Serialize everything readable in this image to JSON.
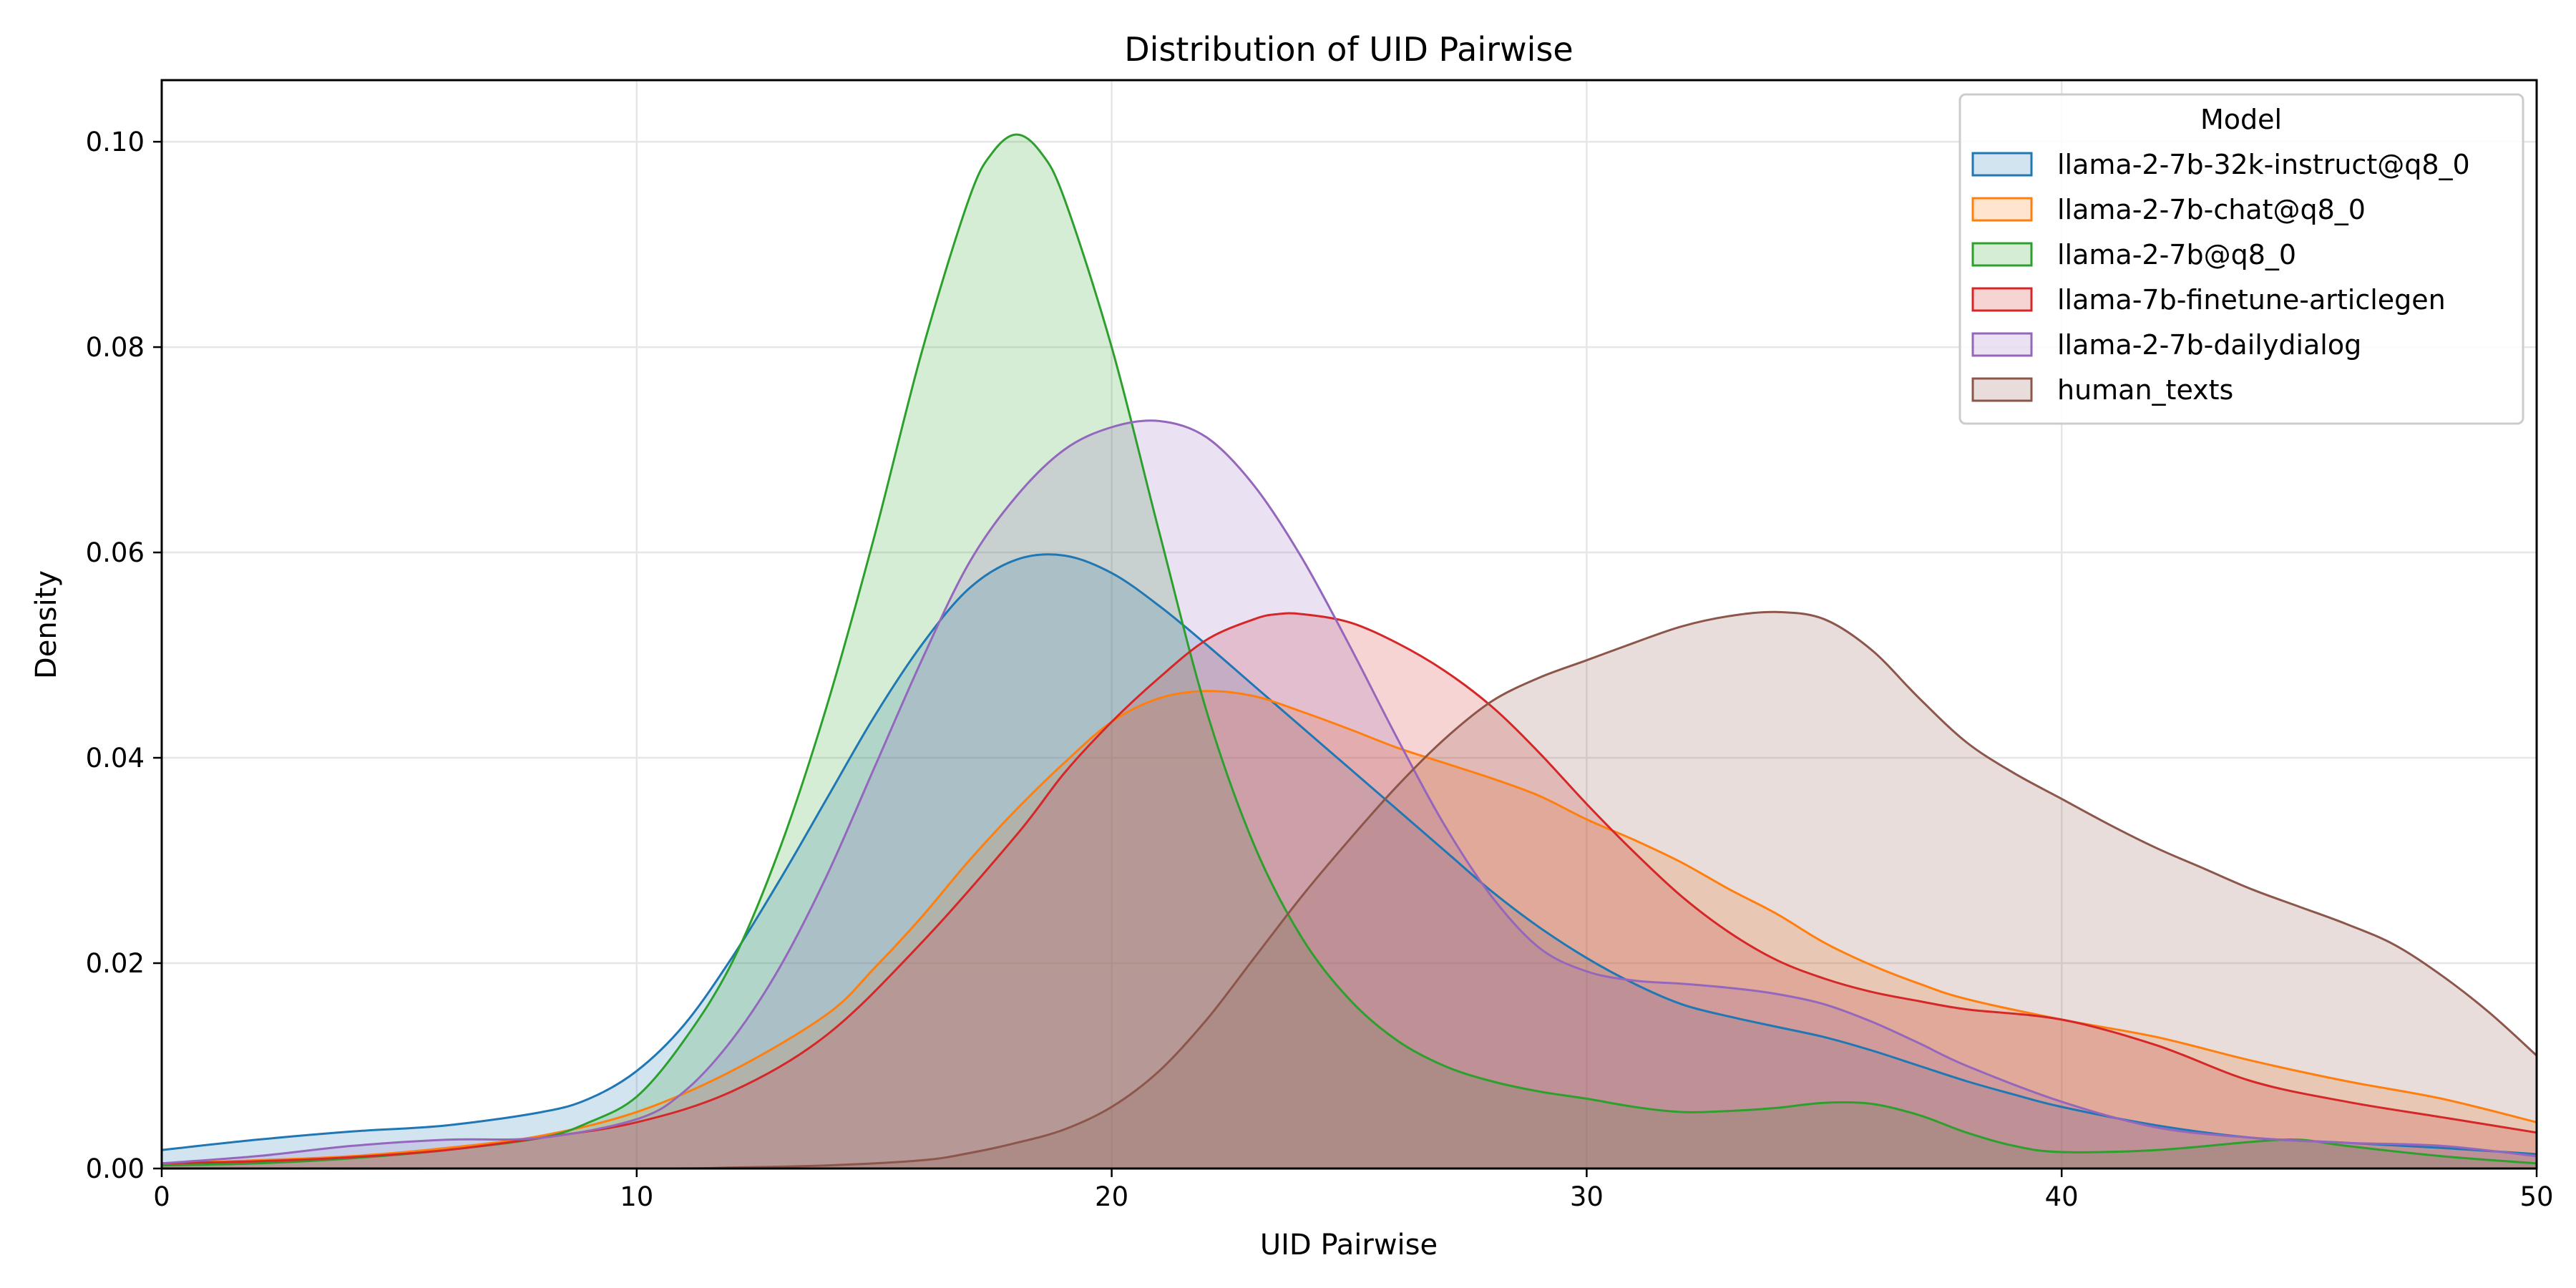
{
  "chart_data": {
    "type": "area",
    "title": "Distribution of UID Pairwise",
    "xlabel": "UID Pairwise",
    "ylabel": "Density",
    "xlim": [
      0,
      50
    ],
    "ylim": [
      0,
      0.106
    ],
    "xticks": [
      0,
      10,
      20,
      30,
      40,
      50
    ],
    "xtick_labels": [
      "0",
      "10",
      "20",
      "30",
      "40",
      "50"
    ],
    "yticks": [
      0,
      0.02,
      0.04,
      0.06,
      0.08,
      0.1
    ],
    "ytick_labels": [
      "0.00",
      "0.02",
      "0.04",
      "0.06",
      "0.08",
      "0.10"
    ],
    "grid": true,
    "legend": {
      "title": "Model",
      "placement": "top-right"
    },
    "series": [
      {
        "name": "llama-2-7b-32k-instruct@q8_0",
        "color": "#1f77b4",
        "points": [
          [
            0,
            0.0018
          ],
          [
            2,
            0.0028
          ],
          [
            4,
            0.0036
          ],
          [
            6,
            0.0042
          ],
          [
            8,
            0.0055
          ],
          [
            9,
            0.0068
          ],
          [
            10,
            0.0095
          ],
          [
            11,
            0.014
          ],
          [
            12,
            0.0205
          ],
          [
            13,
            0.028
          ],
          [
            14,
            0.036
          ],
          [
            15,
            0.044
          ],
          [
            16,
            0.051
          ],
          [
            17,
            0.0565
          ],
          [
            18,
            0.0593
          ],
          [
            19,
            0.0597
          ],
          [
            20,
            0.058
          ],
          [
            21,
            0.0548
          ],
          [
            22,
            0.051
          ],
          [
            23,
            0.047
          ],
          [
            24,
            0.043
          ],
          [
            25,
            0.039
          ],
          [
            26,
            0.035
          ],
          [
            27,
            0.031
          ],
          [
            28,
            0.027
          ],
          [
            29,
            0.0235
          ],
          [
            30,
            0.0205
          ],
          [
            31,
            0.018
          ],
          [
            32,
            0.016
          ],
          [
            33,
            0.0148
          ],
          [
            34,
            0.0138
          ],
          [
            35,
            0.0128
          ],
          [
            36,
            0.0115
          ],
          [
            37,
            0.01
          ],
          [
            38,
            0.0085
          ],
          [
            39,
            0.0072
          ],
          [
            40,
            0.006
          ],
          [
            42,
            0.0042
          ],
          [
            44,
            0.003
          ],
          [
            46,
            0.0025
          ],
          [
            48,
            0.002
          ],
          [
            50,
            0.0014
          ]
        ]
      },
      {
        "name": "llama-2-7b-chat@q8_0",
        "color": "#ff7f0e",
        "points": [
          [
            0,
            0.0005
          ],
          [
            2,
            0.0008
          ],
          [
            4,
            0.0012
          ],
          [
            6,
            0.002
          ],
          [
            8,
            0.0032
          ],
          [
            10,
            0.0055
          ],
          [
            12,
            0.0095
          ],
          [
            14,
            0.015
          ],
          [
            15,
            0.0195
          ],
          [
            16,
            0.0245
          ],
          [
            17,
            0.03
          ],
          [
            18,
            0.035
          ],
          [
            19,
            0.0395
          ],
          [
            20,
            0.0435
          ],
          [
            21,
            0.0458
          ],
          [
            22,
            0.0465
          ],
          [
            23,
            0.046
          ],
          [
            24,
            0.0445
          ],
          [
            25,
            0.0428
          ],
          [
            26,
            0.041
          ],
          [
            27,
            0.0395
          ],
          [
            28,
            0.038
          ],
          [
            29,
            0.0363
          ],
          [
            30,
            0.034
          ],
          [
            31,
            0.032
          ],
          [
            32,
            0.0298
          ],
          [
            33,
            0.0272
          ],
          [
            34,
            0.0248
          ],
          [
            35,
            0.022
          ],
          [
            36,
            0.0198
          ],
          [
            37,
            0.018
          ],
          [
            38,
            0.0165
          ],
          [
            40,
            0.0145
          ],
          [
            42,
            0.0128
          ],
          [
            44,
            0.0105
          ],
          [
            46,
            0.0085
          ],
          [
            48,
            0.0068
          ],
          [
            50,
            0.0045
          ]
        ]
      },
      {
        "name": "llama-2-7b@q8_0",
        "color": "#2ca02c",
        "points": [
          [
            0,
            0.0003
          ],
          [
            2,
            0.0005
          ],
          [
            4,
            0.001
          ],
          [
            6,
            0.0018
          ],
          [
            8,
            0.003
          ],
          [
            9,
            0.0045
          ],
          [
            10,
            0.007
          ],
          [
            11,
            0.0125
          ],
          [
            12,
            0.02
          ],
          [
            13,
            0.031
          ],
          [
            14,
            0.045
          ],
          [
            15,
            0.0615
          ],
          [
            16,
            0.0795
          ],
          [
            17,
            0.0945
          ],
          [
            17.5,
            0.099
          ],
          [
            18,
            0.1007
          ],
          [
            18.5,
            0.099
          ],
          [
            19,
            0.0945
          ],
          [
            20,
            0.08
          ],
          [
            21,
            0.062
          ],
          [
            22,
            0.0445
          ],
          [
            23,
            0.0315
          ],
          [
            24,
            0.0225
          ],
          [
            25,
            0.0165
          ],
          [
            26,
            0.0125
          ],
          [
            27,
            0.01
          ],
          [
            28,
            0.0085
          ],
          [
            29,
            0.0075
          ],
          [
            30,
            0.0068
          ],
          [
            31,
            0.006
          ],
          [
            32,
            0.0055
          ],
          [
            33,
            0.0056
          ],
          [
            34,
            0.0059
          ],
          [
            35,
            0.0064
          ],
          [
            36,
            0.0063
          ],
          [
            37,
            0.0052
          ],
          [
            38,
            0.0035
          ],
          [
            39,
            0.0022
          ],
          [
            40,
            0.0016
          ],
          [
            42,
            0.0018
          ],
          [
            44,
            0.0026
          ],
          [
            45,
            0.0028
          ],
          [
            46,
            0.0022
          ],
          [
            48,
            0.0012
          ],
          [
            50,
            0.0005
          ]
        ]
      },
      {
        "name": "llama-7b-finetune-articlegen",
        "color": "#d62728",
        "points": [
          [
            0,
            0.0005
          ],
          [
            2,
            0.0007
          ],
          [
            4,
            0.0011
          ],
          [
            6,
            0.0018
          ],
          [
            8,
            0.003
          ],
          [
            10,
            0.0045
          ],
          [
            12,
            0.0075
          ],
          [
            14,
            0.013
          ],
          [
            16,
            0.022
          ],
          [
            18,
            0.0325
          ],
          [
            19,
            0.0385
          ],
          [
            20,
            0.0435
          ],
          [
            21,
            0.0478
          ],
          [
            22,
            0.0515
          ],
          [
            23,
            0.0535
          ],
          [
            23.5,
            0.054
          ],
          [
            24,
            0.054
          ],
          [
            25,
            0.0532
          ],
          [
            26,
            0.0512
          ],
          [
            27,
            0.0485
          ],
          [
            28,
            0.045
          ],
          [
            29,
            0.0405
          ],
          [
            30,
            0.0355
          ],
          [
            31,
            0.0308
          ],
          [
            32,
            0.0265
          ],
          [
            33,
            0.023
          ],
          [
            34,
            0.0203
          ],
          [
            35,
            0.0185
          ],
          [
            36,
            0.0172
          ],
          [
            37,
            0.0163
          ],
          [
            38,
            0.0155
          ],
          [
            40,
            0.0145
          ],
          [
            42,
            0.012
          ],
          [
            44,
            0.0085
          ],
          [
            46,
            0.0065
          ],
          [
            48,
            0.005
          ],
          [
            50,
            0.0035
          ]
        ]
      },
      {
        "name": "llama-2-7b-dailydialog",
        "color": "#9467bd",
        "points": [
          [
            0,
            0.0005
          ],
          [
            2,
            0.0012
          ],
          [
            4,
            0.0022
          ],
          [
            6,
            0.0028
          ],
          [
            8,
            0.003
          ],
          [
            10,
            0.0048
          ],
          [
            11,
            0.0075
          ],
          [
            12,
            0.0125
          ],
          [
            13,
            0.0195
          ],
          [
            14,
            0.0285
          ],
          [
            15,
            0.039
          ],
          [
            16,
            0.0495
          ],
          [
            17,
            0.059
          ],
          [
            18,
            0.0655
          ],
          [
            19,
            0.07
          ],
          [
            20,
            0.0722
          ],
          [
            21,
            0.0728
          ],
          [
            22,
            0.0712
          ],
          [
            23,
            0.0665
          ],
          [
            24,
            0.0595
          ],
          [
            25,
            0.051
          ],
          [
            26,
            0.042
          ],
          [
            27,
            0.0335
          ],
          [
            28,
            0.0265
          ],
          [
            29,
            0.0215
          ],
          [
            30,
            0.0192
          ],
          [
            31,
            0.0183
          ],
          [
            32,
            0.018
          ],
          [
            33,
            0.0176
          ],
          [
            34,
            0.017
          ],
          [
            35,
            0.016
          ],
          [
            36,
            0.0143
          ],
          [
            37,
            0.0122
          ],
          [
            38,
            0.01
          ],
          [
            40,
            0.0065
          ],
          [
            42,
            0.004
          ],
          [
            44,
            0.003
          ],
          [
            46,
            0.0025
          ],
          [
            48,
            0.0022
          ],
          [
            50,
            0.0012
          ]
        ]
      },
      {
        "name": "human_texts",
        "color": "#8c564b",
        "points": [
          [
            0,
            0
          ],
          [
            10,
            0
          ],
          [
            12,
            0.0001
          ],
          [
            14,
            0.0003
          ],
          [
            16,
            0.0008
          ],
          [
            17,
            0.0015
          ],
          [
            18,
            0.0025
          ],
          [
            19,
            0.0038
          ],
          [
            20,
            0.006
          ],
          [
            21,
            0.0095
          ],
          [
            22,
            0.0145
          ],
          [
            23,
            0.0205
          ],
          [
            24,
            0.0265
          ],
          [
            25,
            0.032
          ],
          [
            26,
            0.0372
          ],
          [
            27,
            0.0418
          ],
          [
            28,
            0.0455
          ],
          [
            29,
            0.0478
          ],
          [
            30,
            0.0495
          ],
          [
            31,
            0.0512
          ],
          [
            32,
            0.0528
          ],
          [
            33,
            0.0538
          ],
          [
            34,
            0.0542
          ],
          [
            35,
            0.0535
          ],
          [
            36,
            0.0505
          ],
          [
            37,
            0.0458
          ],
          [
            38,
            0.0415
          ],
          [
            39,
            0.0385
          ],
          [
            40,
            0.036
          ],
          [
            41,
            0.0335
          ],
          [
            42,
            0.0312
          ],
          [
            43,
            0.0292
          ],
          [
            44,
            0.0272
          ],
          [
            45,
            0.0255
          ],
          [
            46,
            0.0238
          ],
          [
            47,
            0.0218
          ],
          [
            48,
            0.0188
          ],
          [
            49,
            0.0152
          ],
          [
            50,
            0.011
          ]
        ]
      }
    ]
  }
}
